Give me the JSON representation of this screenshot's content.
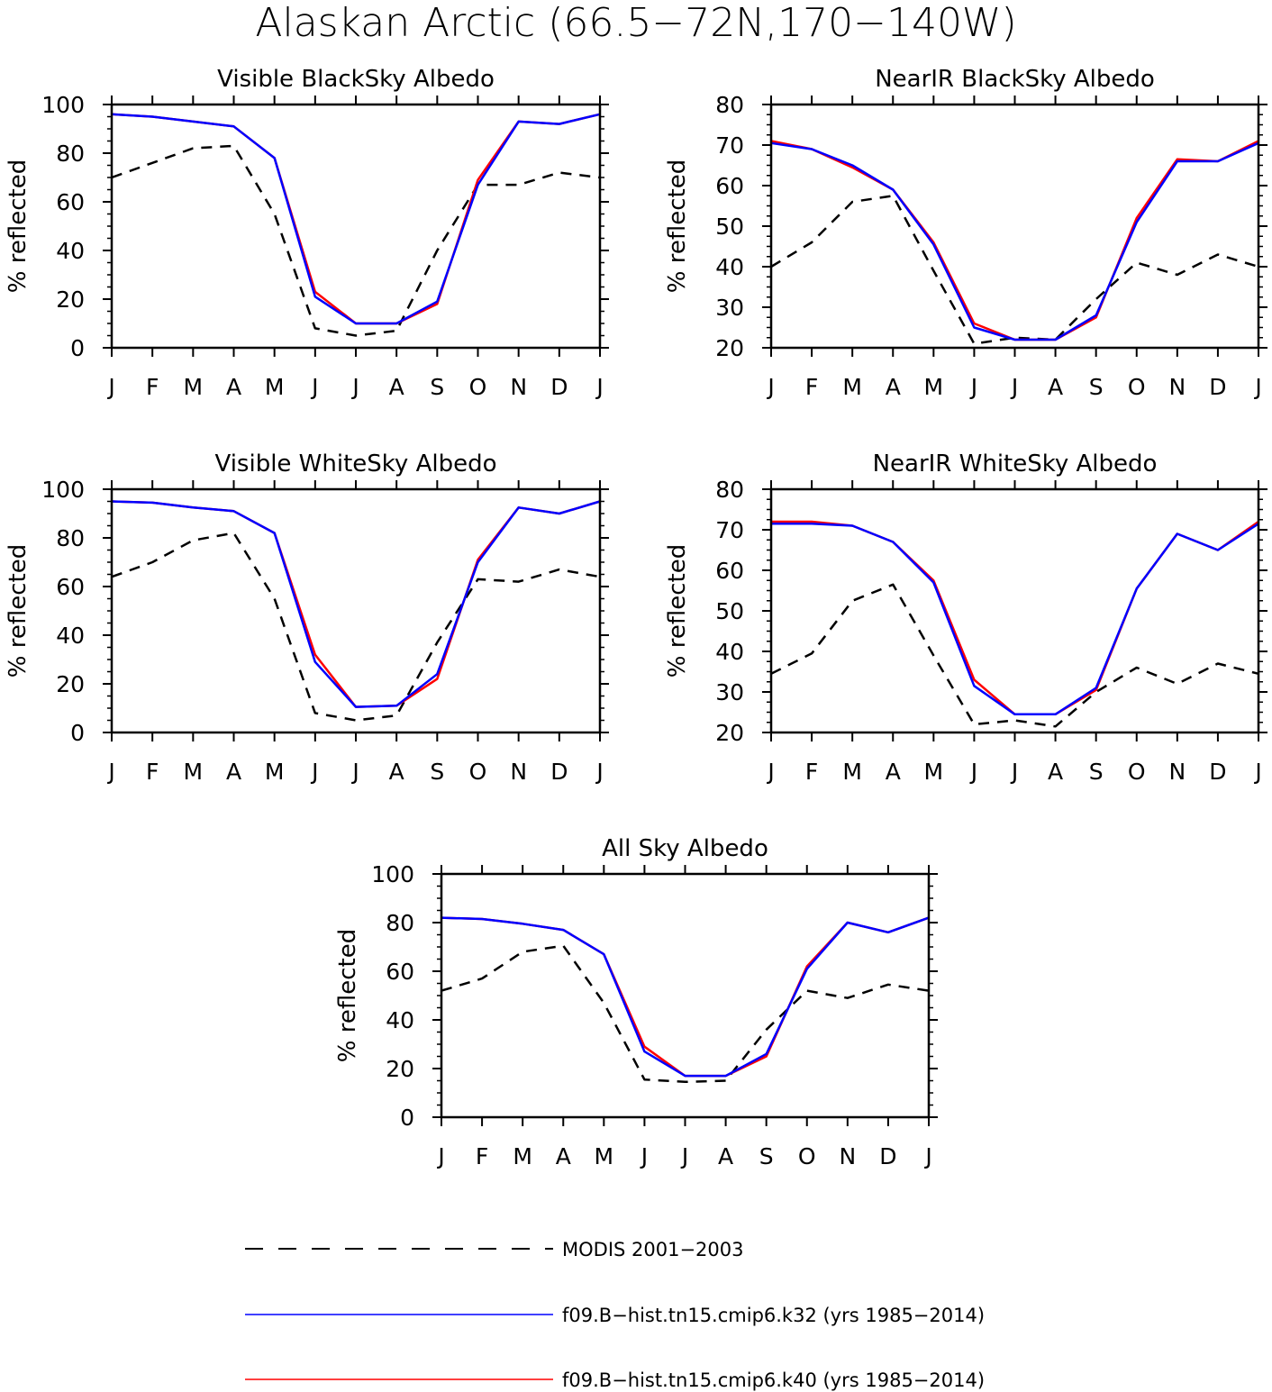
{
  "title": "Alaskan Arctic (66.5−72N,170−140W)",
  "legend": [
    {
      "key": "modis",
      "label": "MODIS 2001−2003",
      "color": "#000000",
      "dashed": true
    },
    {
      "key": "k32",
      "label": "f09.B−hist.tn15.cmip6.k32 (yrs 1985−2014)",
      "color": "#0000ff",
      "dashed": false
    },
    {
      "key": "k40",
      "label": "f09.B−hist.tn15.cmip6.k40 (yrs 1985−2014)",
      "color": "#ff0000",
      "dashed": false
    }
  ],
  "chart_data": [
    {
      "type": "line",
      "title": "Visible BlackSky Albedo",
      "ylabel": "% reflected",
      "ylim": [
        0,
        100
      ],
      "yticks": [
        "0",
        "20",
        "40",
        "60",
        "80",
        "100"
      ],
      "categories": [
        "J",
        "F",
        "M",
        "A",
        "M",
        "J",
        "J",
        "A",
        "S",
        "O",
        "N",
        "D",
        "J"
      ],
      "series": [
        {
          "name": "MODIS 2001−2003",
          "values": [
            70,
            76,
            82,
            83,
            55,
            8,
            5,
            7,
            40,
            67,
            67,
            72,
            70
          ]
        },
        {
          "name": "f09.B−hist.tn15.cmip6.k40 (yrs 1985−2014)",
          "values": [
            96,
            95,
            93,
            91,
            78,
            23,
            10,
            10,
            18,
            69,
            93,
            92,
            96
          ]
        },
        {
          "name": "f09.B−hist.tn15.cmip6.k32 (yrs 1985−2014)",
          "values": [
            96,
            95,
            93,
            91,
            78,
            21,
            10,
            10,
            19,
            67,
            93,
            92,
            96
          ]
        }
      ]
    },
    {
      "type": "line",
      "title": "NearIR BlackSky Albedo",
      "ylabel": "% reflected",
      "ylim": [
        20,
        80
      ],
      "yticks": [
        "20",
        "30",
        "40",
        "50",
        "60",
        "70",
        "80"
      ],
      "categories": [
        "J",
        "F",
        "M",
        "A",
        "M",
        "J",
        "J",
        "A",
        "S",
        "O",
        "N",
        "D",
        "J"
      ],
      "series": [
        {
          "name": "MODIS 2001−2003",
          "values": [
            40,
            46,
            56,
            57.5,
            39,
            21,
            22.5,
            22,
            32,
            41,
            38,
            43,
            40
          ]
        },
        {
          "name": "f09.B−hist.tn15.cmip6.k40 (yrs 1985−2014)",
          "values": [
            71,
            69,
            64.5,
            59,
            46,
            26,
            22,
            22,
            27.5,
            52,
            66.5,
            66,
            71
          ]
        },
        {
          "name": "f09.B−hist.tn15.cmip6.k32 (yrs 1985−2014)",
          "values": [
            70.5,
            69,
            65,
            59,
            45.5,
            25,
            22,
            22,
            28,
            51,
            66,
            66,
            70.5
          ]
        }
      ]
    },
    {
      "type": "line",
      "title": "Visible WhiteSky Albedo",
      "ylabel": "% reflected",
      "ylim": [
        0,
        100
      ],
      "yticks": [
        "0",
        "20",
        "40",
        "60",
        "80",
        "100"
      ],
      "categories": [
        "J",
        "F",
        "M",
        "A",
        "M",
        "J",
        "J",
        "A",
        "S",
        "O",
        "N",
        "D",
        "J"
      ],
      "series": [
        {
          "name": "MODIS 2001−2003",
          "values": [
            64,
            70,
            79,
            82,
            55,
            8,
            5,
            7,
            37,
            63,
            62,
            67,
            64
          ]
        },
        {
          "name": "f09.B−hist.tn15.cmip6.k40 (yrs 1985−2014)",
          "values": [
            95,
            94.5,
            92.5,
            91,
            82,
            32,
            10.5,
            11,
            22,
            71,
            92.5,
            90,
            95
          ]
        },
        {
          "name": "f09.B−hist.tn15.cmip6.k32 (yrs 1985−2014)",
          "values": [
            95,
            94.5,
            92.5,
            91,
            82,
            29,
            10.5,
            11,
            24,
            70,
            92.5,
            90,
            95
          ]
        }
      ]
    },
    {
      "type": "line",
      "title": "NearIR WhiteSky Albedo",
      "ylabel": "% reflected",
      "ylim": [
        20,
        80
      ],
      "yticks": [
        "20",
        "30",
        "40",
        "50",
        "60",
        "70",
        "80"
      ],
      "categories": [
        "J",
        "F",
        "M",
        "A",
        "M",
        "J",
        "J",
        "A",
        "S",
        "O",
        "N",
        "D",
        "J"
      ],
      "series": [
        {
          "name": "MODIS 2001−2003",
          "values": [
            34.5,
            39.5,
            52.5,
            56.5,
            39,
            22,
            23,
            21.5,
            30,
            36,
            32,
            37,
            34.5
          ]
        },
        {
          "name": "f09.B−hist.tn15.cmip6.k40 (yrs 1985−2014)",
          "values": [
            72,
            72,
            71,
            67,
            57.5,
            33,
            24.5,
            24.5,
            30.5,
            55.5,
            69,
            65,
            72
          ]
        },
        {
          "name": "f09.B−hist.tn15.cmip6.k32 (yrs 1985−2014)",
          "values": [
            71.5,
            71.5,
            71,
            67,
            57,
            31.5,
            24.5,
            24.5,
            31,
            55.5,
            69,
            65,
            71.5
          ]
        }
      ]
    },
    {
      "type": "line",
      "title": "All Sky Albedo",
      "ylabel": "% reflected",
      "ylim": [
        0,
        100
      ],
      "yticks": [
        "0",
        "20",
        "40",
        "60",
        "80",
        "100"
      ],
      "categories": [
        "J",
        "F",
        "M",
        "A",
        "M",
        "J",
        "J",
        "A",
        "S",
        "O",
        "N",
        "D",
        "J"
      ],
      "series": [
        {
          "name": "MODIS 2001−2003",
          "values": [
            52,
            57,
            68,
            70.5,
            47,
            15.5,
            14.5,
            15,
            36,
            52,
            49,
            54.5,
            52
          ]
        },
        {
          "name": "f09.B−hist.tn15.cmip6.k40 (yrs 1985−2014)",
          "values": [
            82,
            81.5,
            79.5,
            77,
            67,
            29,
            17,
            17,
            25,
            62,
            80,
            76,
            82
          ]
        },
        {
          "name": "f09.B−hist.tn15.cmip6.k32 (yrs 1985−2014)",
          "values": [
            82,
            81.5,
            79.5,
            77,
            67,
            27,
            17,
            17,
            26,
            61,
            80,
            76,
            82
          ]
        }
      ]
    }
  ]
}
